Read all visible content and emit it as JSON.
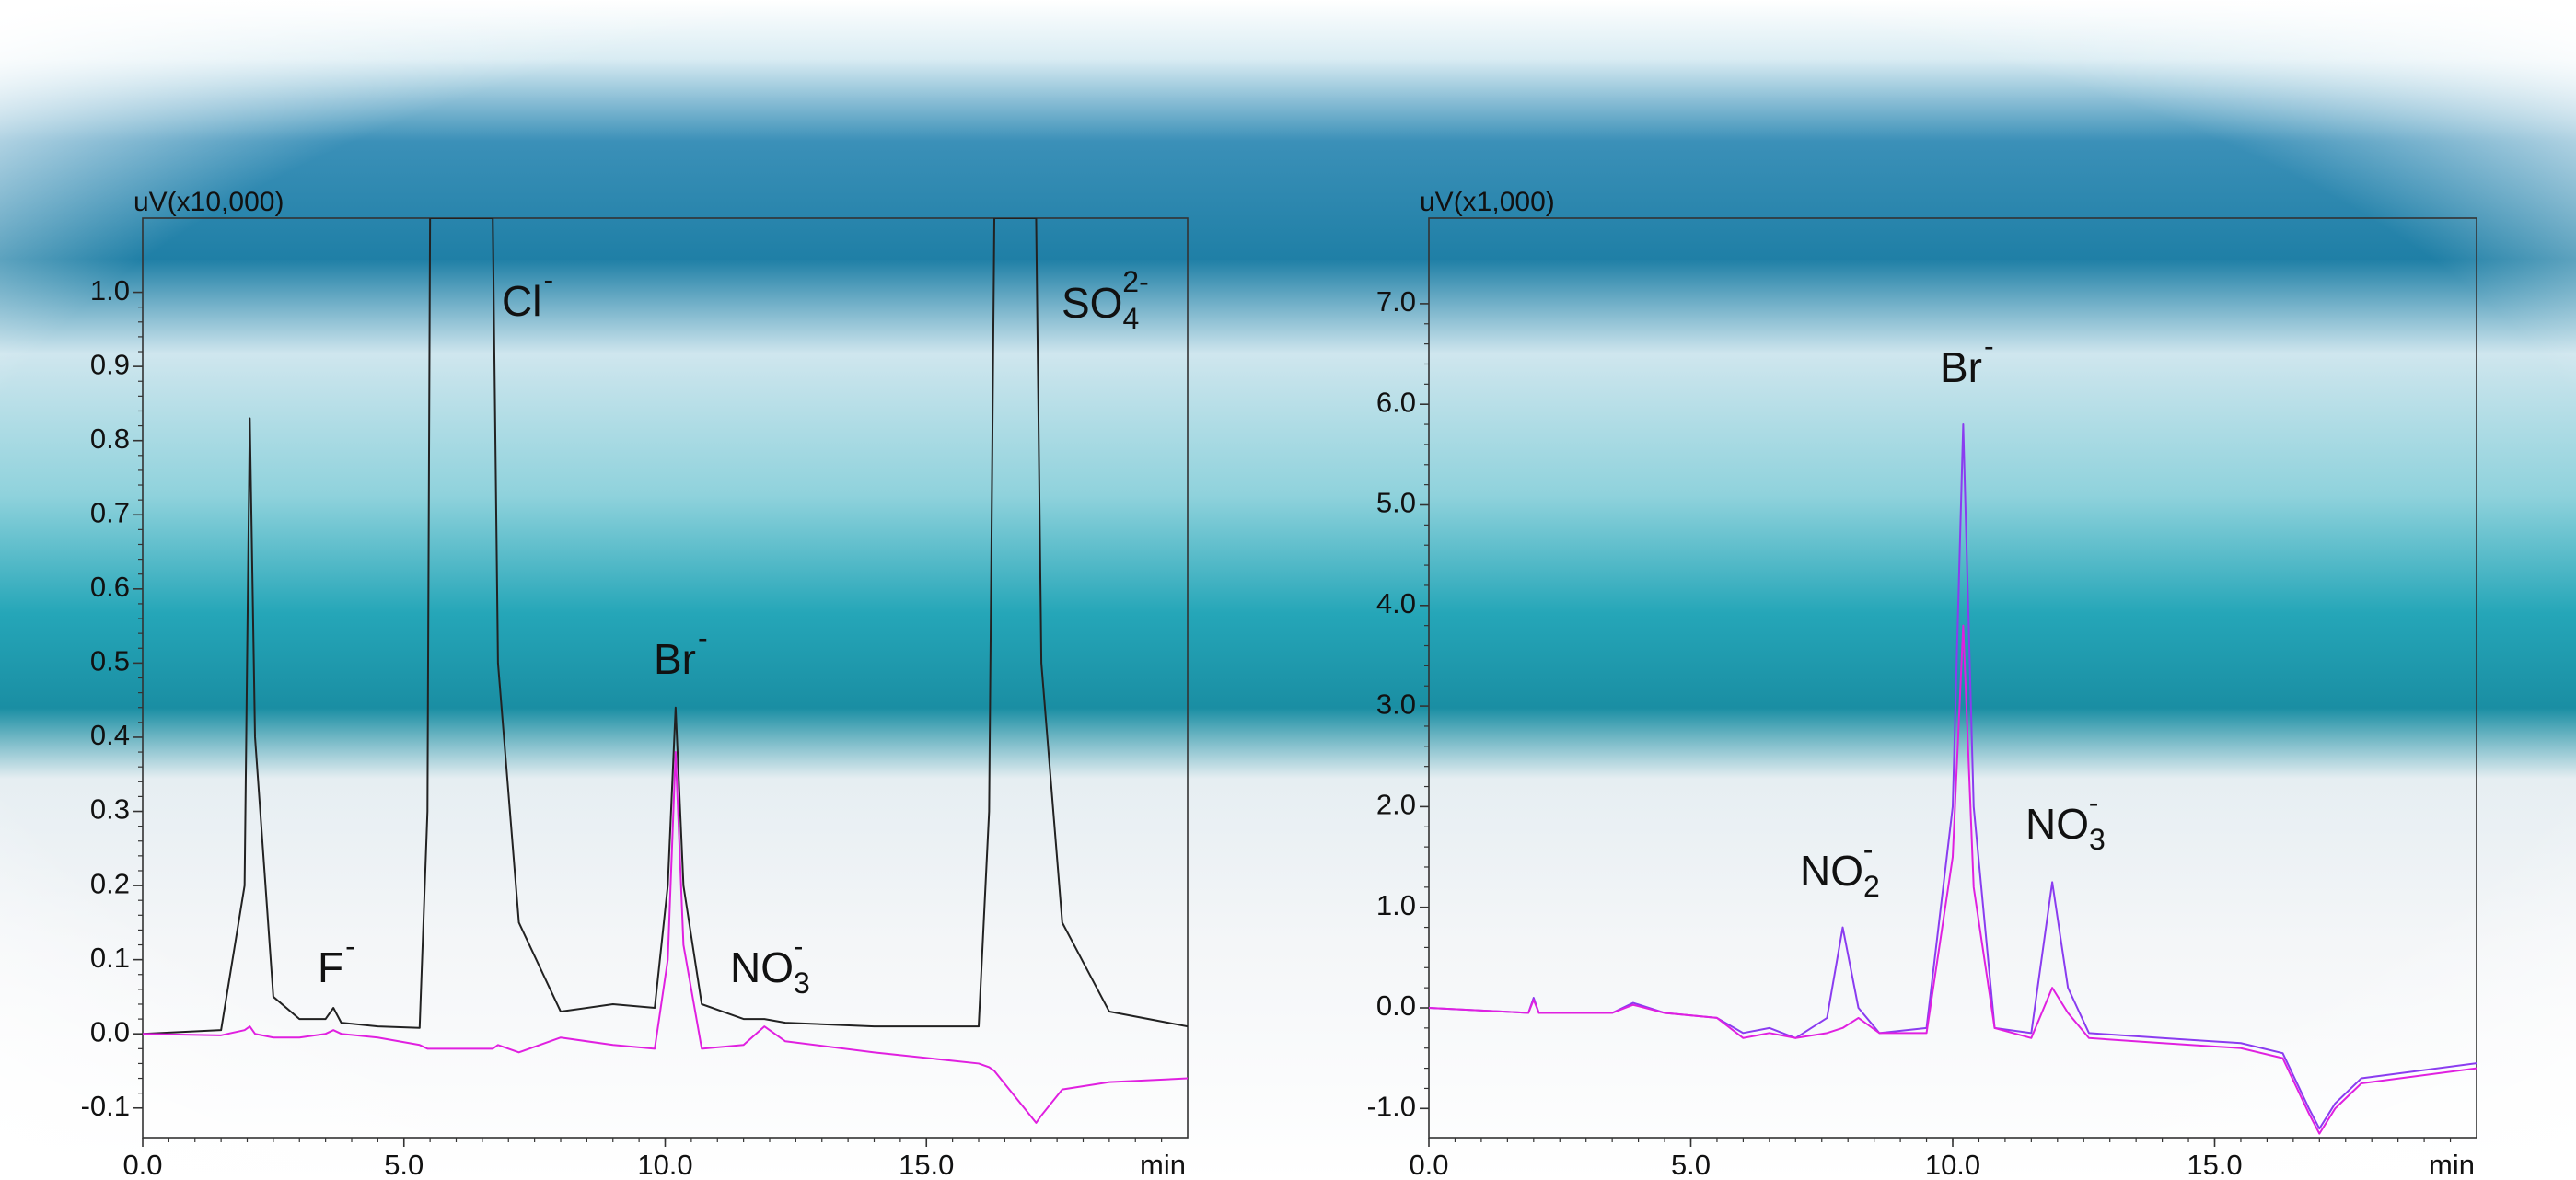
{
  "chart_data": [
    {
      "type": "line",
      "y_label": "uV(x10,000)",
      "x_label": "min",
      "xlim": [
        0,
        20
      ],
      "ylim": [
        -0.14,
        1.1
      ],
      "xticks": [
        {
          "value": 0,
          "label": "0.0"
        },
        {
          "value": 5,
          "label": "5.0"
        },
        {
          "value": 10,
          "label": "10.0"
        },
        {
          "value": 15,
          "label": "15.0"
        }
      ],
      "yticks": [
        -0.1,
        {
          "value": 0,
          "label": "0.0"
        },
        0.1,
        0.2,
        0.3,
        0.4,
        0.5,
        0.6,
        0.7,
        0.8,
        0.9,
        {
          "value": 1,
          "label": "1.0"
        }
      ],
      "x": [
        0,
        1.5,
        1.95,
        2.05,
        2.15,
        2.5,
        3.0,
        3.5,
        3.65,
        3.8,
        4.5,
        5.3,
        5.45,
        5.5,
        6.7,
        6.8,
        7.2,
        8.0,
        9.0,
        9.8,
        10.05,
        10.2,
        10.35,
        10.7,
        11.5,
        11.9,
        12.3,
        14,
        16.0,
        16.2,
        16.3,
        17.1,
        17.2,
        17.6,
        18.5,
        20
      ],
      "series": [
        {
          "color": "#222222",
          "values": [
            0,
            0.005,
            0.2,
            0.83,
            0.4,
            0.05,
            0.02,
            0.02,
            0.035,
            0.015,
            0.01,
            0.008,
            0.3,
            1.1,
            1.1,
            0.5,
            0.15,
            0.03,
            0.04,
            0.035,
            0.2,
            0.44,
            0.2,
            0.04,
            0.02,
            0.02,
            0.015,
            0.01,
            0.01,
            0.3,
            1.1,
            1.1,
            0.5,
            0.15,
            0.03,
            0.01
          ]
        },
        {
          "color": "#e020e0",
          "values": [
            0,
            -0.002,
            0.005,
            0.01,
            0,
            -0.005,
            -0.005,
            0,
            0.005,
            0,
            -0.005,
            -0.015,
            -0.02,
            -0.02,
            -0.02,
            -0.015,
            -0.025,
            -0.005,
            -0.015,
            -0.02,
            0.1,
            0.38,
            0.12,
            -0.02,
            -0.015,
            0.01,
            -0.01,
            -0.025,
            -0.04,
            -0.045,
            -0.05,
            -0.12,
            -0.11,
            -0.075,
            -0.065,
            -0.06
          ]
        }
      ],
      "annotations": [
        {
          "text": "F",
          "sup": "-"
        },
        {
          "text": "Cl",
          "sup": "-"
        },
        {
          "text": "Br",
          "sup": "-"
        },
        {
          "text": "NO",
          "sub": "3",
          "sup": "-"
        },
        {
          "text": "SO",
          "sub": "4",
          "sup": "2-"
        }
      ]
    },
    {
      "type": "line",
      "y_label": "uV(x1,000)",
      "x_label": "min",
      "xlim": [
        0,
        20
      ],
      "ylim": [
        -1.29,
        7.85
      ],
      "xticks": [
        {
          "value": 0,
          "label": "0.0"
        },
        {
          "value": 5,
          "label": "5.0"
        },
        {
          "value": 10,
          "label": "10.0"
        },
        {
          "value": 15,
          "label": "15.0"
        }
      ],
      "yticks": [
        {
          "value": -1,
          "label": "-1.0"
        },
        {
          "value": 0,
          "label": "0.0"
        },
        {
          "value": 1,
          "label": "1.0"
        },
        {
          "value": 2,
          "label": "2.0"
        },
        {
          "value": 3,
          "label": "3.0"
        },
        {
          "value": 4,
          "label": "4.0"
        },
        {
          "value": 5,
          "label": "5.0"
        },
        {
          "value": 6,
          "label": "6.0"
        },
        {
          "value": 7,
          "label": "7.0"
        }
      ],
      "x": [
        0,
        1.9,
        2.0,
        2.1,
        3.5,
        3.9,
        4.5,
        5.5,
        6.0,
        6.5,
        7.0,
        7.6,
        7.9,
        8.2,
        8.6,
        9.5,
        10.0,
        10.2,
        10.4,
        10.8,
        11.5,
        11.9,
        12.2,
        12.6,
        14,
        15.5,
        16.3,
        16.8,
        17.0,
        17.3,
        17.8,
        20
      ],
      "series": [
        {
          "color": "#8a3cf0",
          "values": [
            0,
            -0.05,
            0.1,
            -0.05,
            -0.05,
            0.05,
            -0.05,
            -0.1,
            -0.25,
            -0.2,
            -0.3,
            -0.1,
            0.8,
            0,
            -0.25,
            -0.2,
            2.0,
            5.8,
            2.0,
            -0.2,
            -0.25,
            1.25,
            0.2,
            -0.25,
            -0.3,
            -0.35,
            -0.45,
            -1.0,
            -1.2,
            -0.95,
            -0.7,
            -0.55
          ]
        },
        {
          "color": "#e020e0",
          "values": [
            0,
            -0.05,
            0.08,
            -0.05,
            -0.05,
            0.03,
            -0.05,
            -0.1,
            -0.3,
            -0.25,
            -0.3,
            -0.25,
            -0.2,
            -0.1,
            -0.25,
            -0.25,
            1.5,
            3.8,
            1.2,
            -0.2,
            -0.3,
            0.2,
            -0.05,
            -0.3,
            -0.35,
            -0.4,
            -0.5,
            -1.05,
            -1.25,
            -1.0,
            -0.75,
            -0.6
          ]
        }
      ],
      "annotations": [
        {
          "text": "Br",
          "sup": "-"
        },
        {
          "text": "NO",
          "sub": "2",
          "sup": "-"
        },
        {
          "text": "NO",
          "sub": "3",
          "sup": "-"
        }
      ]
    }
  ]
}
